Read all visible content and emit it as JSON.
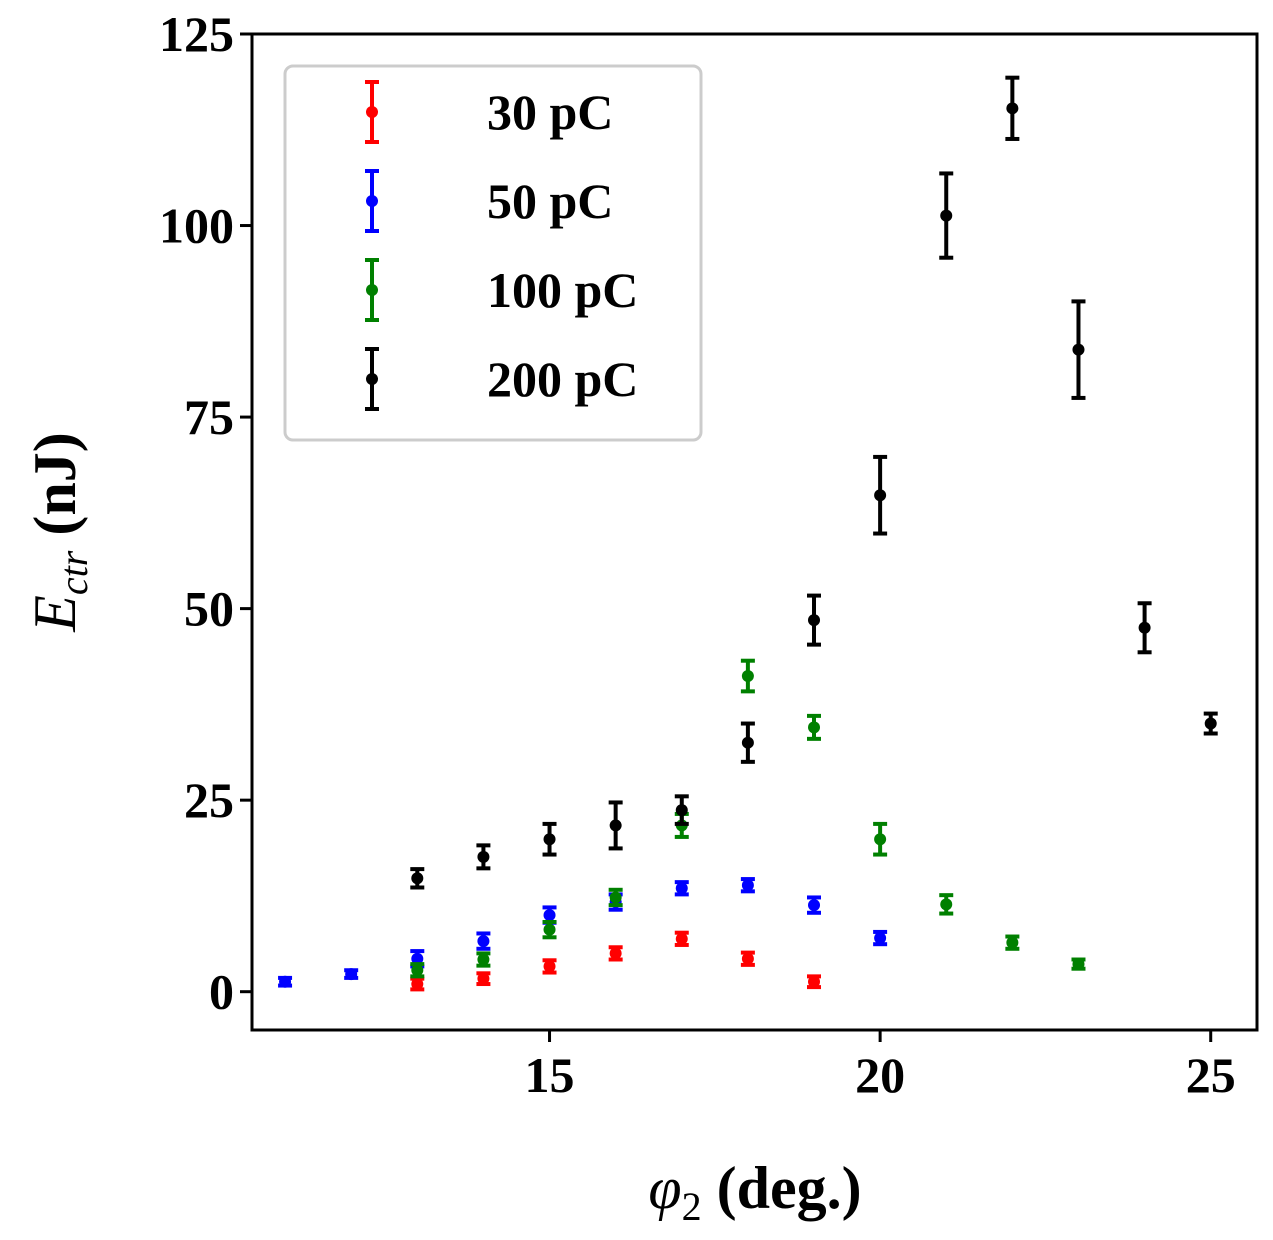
{
  "chart_data": {
    "type": "scatter",
    "title": "",
    "xlabel": {
      "symbol": "φ",
      "subscript": "2",
      "unit": " (deg.)"
    },
    "ylabel": {
      "symbol": "E",
      "subscript": "ctr",
      "unit": " (nJ)"
    },
    "xlim": [
      10.5,
      25.7
    ],
    "ylim": [
      -5,
      125
    ],
    "xticks": [
      15,
      20,
      25
    ],
    "yticks": [
      0,
      25,
      50,
      75,
      100,
      125
    ],
    "grid": false,
    "legend_position": "top-left",
    "series": [
      {
        "name": "30 pC",
        "color": "#ff0000",
        "x": [
          13,
          14,
          15,
          16,
          17,
          18,
          19
        ],
        "y": [
          1.0,
          1.7,
          3.3,
          5.0,
          6.9,
          4.3,
          1.3
        ],
        "err": [
          0.7,
          0.7,
          0.8,
          0.8,
          0.8,
          0.8,
          0.7
        ]
      },
      {
        "name": "50 pC",
        "color": "#0000ff",
        "x": [
          11,
          12,
          13,
          14,
          15,
          16,
          17,
          18,
          19,
          20
        ],
        "y": [
          1.3,
          2.3,
          4.3,
          6.6,
          10.0,
          11.7,
          13.5,
          13.9,
          11.3,
          7.0
        ],
        "err": [
          0.5,
          0.5,
          1.0,
          1.0,
          1.0,
          1.0,
          0.8,
          0.8,
          1.0,
          0.8
        ]
      },
      {
        "name": "100 pC",
        "color": "#008000",
        "x": [
          13,
          14,
          15,
          16,
          17,
          18,
          19,
          20,
          21,
          22,
          23
        ],
        "y": [
          2.8,
          4.2,
          8.1,
          12.3,
          21.7,
          41.2,
          34.5,
          19.9,
          11.4,
          6.4,
          3.6
        ],
        "err": [
          0.8,
          0.8,
          1.0,
          1.0,
          1.5,
          2.0,
          1.5,
          2.0,
          1.2,
          0.8,
          0.6
        ]
      },
      {
        "name": "200 pC",
        "color": "#000000",
        "x": [
          13,
          14,
          15,
          16,
          17,
          18,
          19,
          20,
          21,
          22,
          23,
          24,
          25
        ],
        "y": [
          14.8,
          17.6,
          19.9,
          21.7,
          23.7,
          32.5,
          48.5,
          64.8,
          101.3,
          115.3,
          83.8,
          47.5,
          35.0
        ],
        "err": [
          1.2,
          1.5,
          2.0,
          3.0,
          1.8,
          2.5,
          3.2,
          5.0,
          5.5,
          4.0,
          6.3,
          3.2,
          1.3
        ]
      }
    ]
  }
}
